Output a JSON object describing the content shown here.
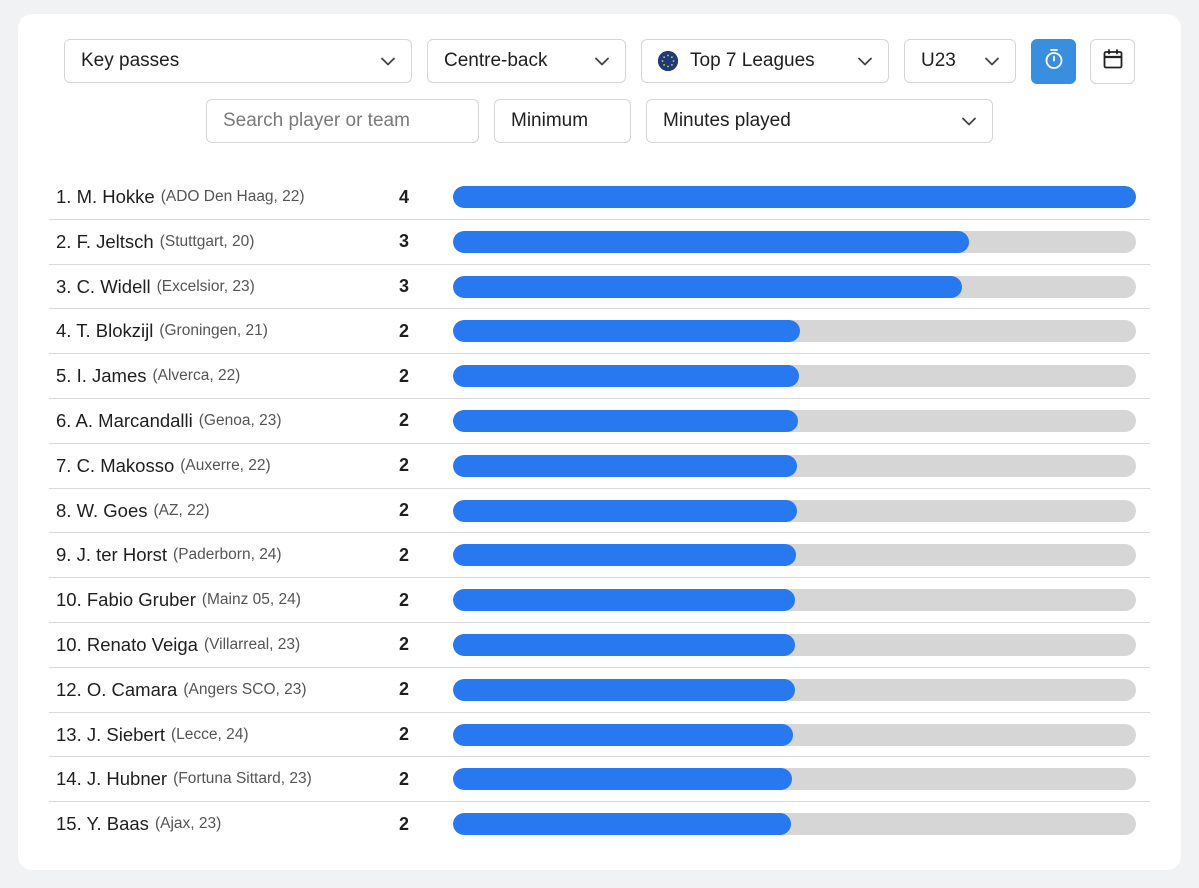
{
  "filters": {
    "stat": "Key passes",
    "position": "Centre-back",
    "competition": "Top 7 Leagues",
    "age": "U23",
    "minimum_label": "Minimum",
    "minimum_metric": "Minutes played",
    "search_placeholder": "Search player or team"
  },
  "colors": {
    "bar_fill": "#2878f0",
    "bar_track": "#d6d6d6",
    "active_button": "#3a8ee0"
  },
  "icons": {
    "stopwatch_button": "stopwatch-icon",
    "calendar_button": "calendar-icon",
    "competition": "globe-icon",
    "dropdown": "chevron-down-icon"
  },
  "max_value": 4,
  "players": [
    {
      "name": "1. M. Hokke",
      "meta": "(ADO Den Haag, 22)",
      "value": "4",
      "fraction": 1.0
    },
    {
      "name": "2. F. Jeltsch",
      "meta": "(Stuttgart, 20)",
      "value": "3",
      "fraction": 0.755
    },
    {
      "name": "3. C. Widell",
      "meta": "(Excelsior, 23)",
      "value": "3",
      "fraction": 0.745
    },
    {
      "name": "4. T. Blokzijl",
      "meta": "(Groningen, 21)",
      "value": "2",
      "fraction": 0.508
    },
    {
      "name": "5. I. James",
      "meta": "(Alverca, 22)",
      "value": "2",
      "fraction": 0.506
    },
    {
      "name": "6. A. Marcandalli",
      "meta": "(Genoa, 23)",
      "value": "2",
      "fraction": 0.505
    },
    {
      "name": "7. C. Makosso",
      "meta": "(Auxerre, 22)",
      "value": "2",
      "fraction": 0.504
    },
    {
      "name": "8. W. Goes",
      "meta": "(AZ, 22)",
      "value": "2",
      "fraction": 0.504
    },
    {
      "name": "9. J. ter Horst",
      "meta": "(Paderborn, 24)",
      "value": "2",
      "fraction": 0.502
    },
    {
      "name": "10. Fabio Gruber",
      "meta": "(Mainz 05, 24)",
      "value": "2",
      "fraction": 0.501
    },
    {
      "name": "10. Renato Veiga",
      "meta": "(Villarreal, 23)",
      "value": "2",
      "fraction": 0.501
    },
    {
      "name": "12. O. Camara",
      "meta": "(Angers SCO, 23)",
      "value": "2",
      "fraction": 0.5
    },
    {
      "name": "13. J. Siebert",
      "meta": "(Lecce, 24)",
      "value": "2",
      "fraction": 0.498
    },
    {
      "name": "14. J. Hubner",
      "meta": "(Fortuna Sittard, 23)",
      "value": "2",
      "fraction": 0.497
    },
    {
      "name": "15. Y. Baas",
      "meta": "(Ajax, 23)",
      "value": "2",
      "fraction": 0.495
    }
  ]
}
